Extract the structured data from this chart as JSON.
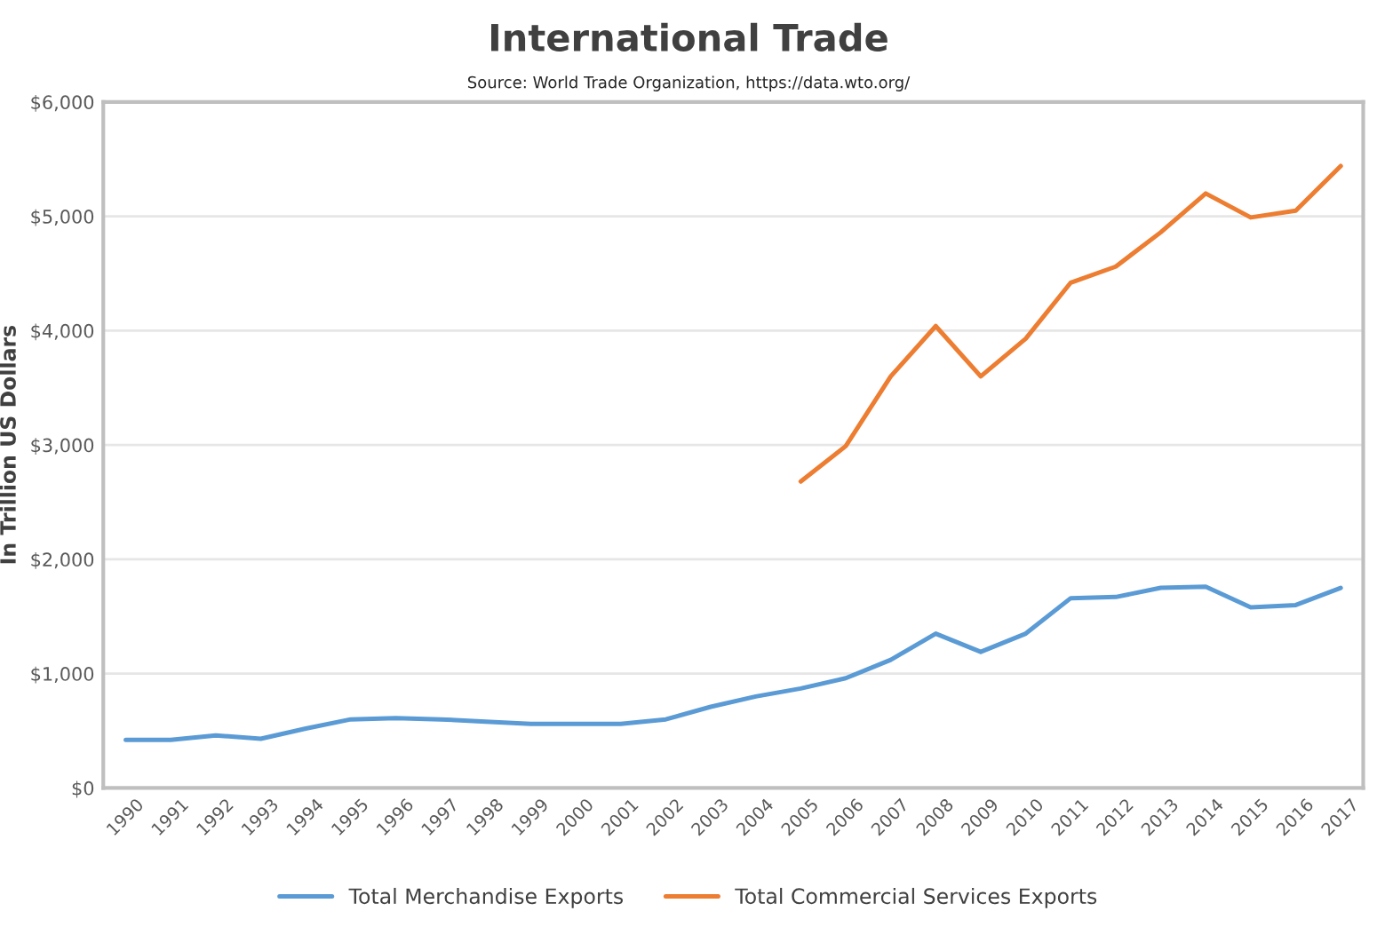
{
  "chart_data": {
    "type": "line",
    "title": "International Trade",
    "annotations": [
      "Source: World Trade Organization, https://data.wto.org/"
    ],
    "ylabel": "In Trillion US Dollars",
    "categories": [
      "1990",
      "1991",
      "1992",
      "1993",
      "1994",
      "1995",
      "1996",
      "1997",
      "1998",
      "1999",
      "2000",
      "2001",
      "2002",
      "2003",
      "2004",
      "2005",
      "2006",
      "2007",
      "2008",
      "2009",
      "2010",
      "2011",
      "2012",
      "2013",
      "2014",
      "2015",
      "2016",
      "2017"
    ],
    "series": [
      {
        "name": "Total Merchandise Exports",
        "color": "#5b9bd5",
        "values": [
          420,
          420,
          460,
          430,
          520,
          600,
          610,
          600,
          580,
          560,
          560,
          560,
          600,
          710,
          800,
          870,
          960,
          1120,
          1350,
          1190,
          1350,
          1660,
          1670,
          1750,
          1760,
          1580,
          1600,
          1750
        ]
      },
      {
        "name": "Total Commercial Services Exports",
        "color": "#ed7d31",
        "values": [
          null,
          null,
          null,
          null,
          null,
          null,
          null,
          null,
          null,
          null,
          null,
          null,
          null,
          null,
          null,
          2680,
          2990,
          3600,
          4040,
          3600,
          3930,
          4420,
          4560,
          4860,
          5200,
          4990,
          5050,
          5440
        ]
      }
    ],
    "ylim": [
      0,
      6000
    ],
    "yticks": [
      {
        "value": 0,
        "label": "$0"
      },
      {
        "value": 1000,
        "label": "$1,000"
      },
      {
        "value": 2000,
        "label": "$2,000"
      },
      {
        "value": 3000,
        "label": "$3,000"
      },
      {
        "value": 4000,
        "label": "$4,000"
      },
      {
        "value": 5000,
        "label": "$5,000"
      },
      {
        "value": 6000,
        "label": "$6,000"
      }
    ],
    "grid": "y",
    "legend": "bottom",
    "marker": "none",
    "line_style": "solid"
  }
}
